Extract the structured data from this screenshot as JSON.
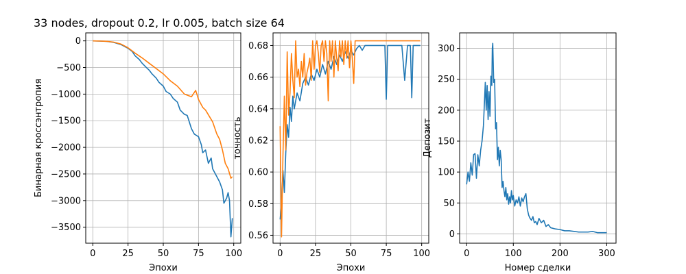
{
  "figure": {
    "title": "33 nodes, dropout 0.2, lr 0.005, batch size 64"
  },
  "colors": {
    "series_1": "#1f77b4",
    "series_2": "#ff7f0e",
    "grid": "#b0b0b0"
  },
  "chart_data": [
    {
      "type": "line",
      "title": "33 nodes, dropout 0.2, lr 0.005, batch size 64",
      "xlabel": "Эпохи",
      "ylabel": "Бинарная кроссэнтропия",
      "xlim": [
        -5,
        105
      ],
      "ylim": [
        -3800,
        150
      ],
      "xticks": [
        0,
        25,
        50,
        75,
        100
      ],
      "yticks": [
        0,
        -500,
        -1000,
        -1500,
        -2000,
        -2500,
        -3000,
        -3500
      ],
      "grid": true,
      "series": [
        {
          "color": "#1f77b4",
          "x": [
            0,
            5,
            10,
            15,
            20,
            25,
            28,
            30,
            33,
            35,
            38,
            40,
            42,
            45,
            47,
            50,
            52,
            55,
            57,
            60,
            62,
            65,
            67,
            70,
            72,
            75,
            77,
            78,
            80,
            82,
            84,
            85,
            87,
            88,
            90,
            92,
            93,
            94,
            95,
            96,
            97,
            98,
            99
          ],
          "y": [
            0,
            -3,
            -10,
            -30,
            -70,
            -140,
            -200,
            -280,
            -350,
            -420,
            -500,
            -550,
            -620,
            -700,
            -780,
            -850,
            -950,
            -1000,
            -1080,
            -1150,
            -1300,
            -1380,
            -1400,
            -1650,
            -1750,
            -1800,
            -1950,
            -2100,
            -2050,
            -2300,
            -2200,
            -2400,
            -2500,
            -2550,
            -2650,
            -2800,
            -3050,
            -3000,
            -2950,
            -2850,
            -3000,
            -3680,
            -3330
          ]
        },
        {
          "color": "#ff7f0e",
          "x": [
            0,
            5,
            10,
            15,
            20,
            25,
            30,
            35,
            40,
            45,
            50,
            55,
            60,
            65,
            70,
            73,
            75,
            78,
            80,
            85,
            88,
            90,
            92,
            94,
            96,
            98,
            99
          ],
          "y": [
            0,
            -3,
            -8,
            -25,
            -60,
            -130,
            -230,
            -320,
            -420,
            -520,
            -620,
            -750,
            -850,
            -1000,
            -1050,
            -930,
            -1100,
            -1250,
            -1300,
            -1520,
            -1750,
            -1850,
            -2050,
            -2300,
            -2400,
            -2580,
            -2550
          ]
        }
      ]
    },
    {
      "type": "line",
      "xlabel": "Эпохи",
      "ylabel": "точность",
      "xlim": [
        -5,
        105
      ],
      "ylim": [
        0.555,
        0.688
      ],
      "xticks": [
        0,
        25,
        50,
        75,
        100
      ],
      "yticks": [
        0.56,
        0.58,
        0.6,
        0.62,
        0.64,
        0.66,
        0.68
      ],
      "grid": true,
      "series": [
        {
          "color": "#1f77b4",
          "x": [
            0,
            1,
            2,
            3,
            4,
            5,
            6,
            7,
            8,
            9,
            10,
            12,
            14,
            16,
            18,
            20,
            22,
            24,
            26,
            28,
            30,
            32,
            34,
            36,
            38,
            40,
            42,
            44,
            46,
            48,
            50,
            52,
            54,
            56,
            58,
            60,
            62,
            64,
            66,
            68,
            70,
            72,
            74,
            75,
            76,
            78,
            80,
            82,
            84,
            86,
            88,
            90,
            92,
            93,
            94,
            96,
            98,
            99
          ],
          "y": [
            0.57,
            0.58,
            0.601,
            0.587,
            0.612,
            0.63,
            0.622,
            0.641,
            0.632,
            0.648,
            0.64,
            0.65,
            0.645,
            0.656,
            0.66,
            0.655,
            0.662,
            0.658,
            0.665,
            0.66,
            0.668,
            0.662,
            0.67,
            0.665,
            0.673,
            0.668,
            0.674,
            0.67,
            0.676,
            0.672,
            0.677,
            0.674,
            0.678,
            0.68,
            0.677,
            0.68,
            0.68,
            0.68,
            0.68,
            0.68,
            0.68,
            0.68,
            0.68,
            0.646,
            0.68,
            0.68,
            0.68,
            0.68,
            0.68,
            0.68,
            0.658,
            0.68,
            0.68,
            0.647,
            0.68,
            0.68,
            0.68,
            0.68
          ]
        },
        {
          "color": "#ff7f0e",
          "x": [
            0,
            1,
            2,
            3,
            4,
            5,
            6,
            7,
            8,
            9,
            10,
            11,
            12,
            13,
            14,
            15,
            16,
            17,
            18,
            19,
            20,
            21,
            22,
            23,
            24,
            25,
            26,
            27,
            28,
            29,
            30,
            31,
            32,
            33,
            34,
            35,
            36,
            37,
            38,
            39,
            40,
            41,
            42,
            43,
            44,
            45,
            46,
            47,
            48,
            49,
            50,
            51,
            52,
            53,
            54,
            55,
            56,
            58,
            60,
            65,
            70,
            75,
            80,
            85,
            90,
            95,
            99
          ],
          "y": [
            0.629,
            0.559,
            0.61,
            0.648,
            0.614,
            0.676,
            0.636,
            0.65,
            0.675,
            0.658,
            0.647,
            0.683,
            0.66,
            0.665,
            0.654,
            0.67,
            0.66,
            0.675,
            0.655,
            0.663,
            0.667,
            0.672,
            0.658,
            0.683,
            0.665,
            0.68,
            0.683,
            0.675,
            0.663,
            0.68,
            0.683,
            0.67,
            0.683,
            0.675,
            0.645,
            0.683,
            0.67,
            0.683,
            0.66,
            0.683,
            0.672,
            0.664,
            0.683,
            0.673,
            0.683,
            0.668,
            0.683,
            0.672,
            0.683,
            0.666,
            0.683,
            0.672,
            0.656,
            0.683,
            0.683,
            0.683,
            0.683,
            0.683,
            0.683,
            0.683,
            0.683,
            0.683,
            0.683,
            0.683,
            0.683,
            0.683,
            0.683
          ]
        }
      ]
    },
    {
      "type": "line",
      "xlabel": "Номер сделки",
      "ylabel": "Депозит",
      "xlim": [
        -15,
        320
      ],
      "ylim": [
        -15,
        325
      ],
      "xticks": [
        0,
        100,
        200,
        300
      ],
      "yticks": [
        0,
        50,
        100,
        150,
        200,
        250,
        300
      ],
      "grid": true,
      "series": [
        {
          "color": "#1f77b4",
          "x": [
            0,
            3,
            6,
            9,
            12,
            15,
            18,
            21,
            24,
            27,
            30,
            33,
            36,
            38,
            40,
            42,
            44,
            46,
            48,
            50,
            52,
            54,
            55,
            56,
            58,
            60,
            62,
            64,
            66,
            68,
            70,
            72,
            74,
            76,
            78,
            80,
            82,
            84,
            86,
            88,
            90,
            92,
            94,
            96,
            98,
            100,
            103,
            106,
            109,
            112,
            115,
            118,
            121,
            124,
            127,
            130,
            133,
            136,
            139,
            142,
            145,
            148,
            151,
            155,
            160,
            165,
            170,
            175,
            180,
            190,
            200,
            210,
            220,
            230,
            240,
            250,
            260,
            270,
            280,
            290,
            300
          ],
          "y": [
            80,
            100,
            85,
            115,
            95,
            128,
            130,
            90,
            128,
            110,
            135,
            150,
            175,
            210,
            245,
            200,
            240,
            185,
            230,
            190,
            255,
            240,
            300,
            308,
            245,
            250,
            170,
            180,
            120,
            140,
            110,
            135,
            120,
            75,
            85,
            70,
            60,
            75,
            55,
            65,
            48,
            60,
            50,
            70,
            55,
            62,
            45,
            55,
            50,
            60,
            45,
            58,
            52,
            60,
            65,
            40,
            30,
            25,
            22,
            28,
            18,
            20,
            15,
            25,
            18,
            22,
            12,
            15,
            10,
            8,
            7,
            5,
            5,
            4,
            3,
            3,
            3,
            4,
            2,
            2,
            2
          ]
        }
      ]
    }
  ]
}
